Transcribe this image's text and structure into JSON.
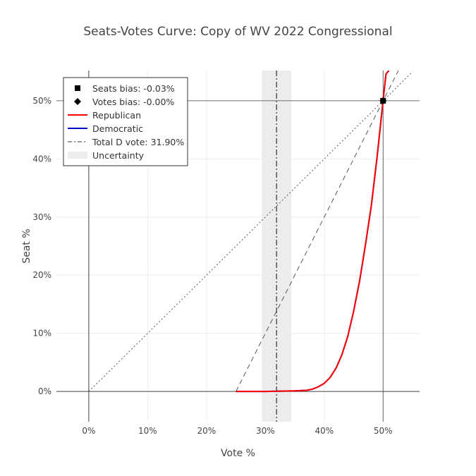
{
  "chart_data": {
    "type": "line",
    "title": "Seats-Votes Curve: Copy of WV 2022 Congressional",
    "xlabel": "Vote %",
    "ylabel": "Seat %",
    "xlim": [
      -0.055,
      0.562
    ],
    "ylim": [
      -0.052,
      0.552
    ],
    "x_ticks": [
      0,
      0.1,
      0.2,
      0.3,
      0.4,
      0.5
    ],
    "x_tick_labels": [
      "0%",
      "10%",
      "20%",
      "30%",
      "40%",
      "50%"
    ],
    "y_ticks": [
      0,
      0.1,
      0.2,
      0.3,
      0.4,
      0.5
    ],
    "y_tick_labels": [
      "0%",
      "10%",
      "20%",
      "30%",
      "40%",
      "50%"
    ],
    "grid": true,
    "legend_position": "top-left",
    "legend": {
      "seats_bias": "Seats bias: -0.03%",
      "votes_bias": "Votes bias: -0.00%",
      "republican": "Republican",
      "democratic": "Democratic",
      "total_d_vote": "Total D vote: 31.90%",
      "uncertainty": "Uncertainty"
    },
    "colors": {
      "republican": "#ff0000",
      "democratic": "#0000cc",
      "reference": "#555555",
      "uncertainty_band": "#ececec",
      "grid": "#eeeeee"
    },
    "total_d_vote": 0.319,
    "uncertainty_range": [
      0.294,
      0.344
    ],
    "seats_bias_point": {
      "x": 0.5,
      "y": 0.5
    },
    "votes_bias_point": {
      "x": 0.5,
      "y": 0.5
    },
    "reference_lines": [
      {
        "name": "proportionality",
        "style": "dotted",
        "x": [
          0,
          0.55
        ],
        "y": [
          0,
          0.55
        ]
      },
      {
        "name": "responsiveness",
        "style": "dashed",
        "x": [
          0.25,
          0.526
        ],
        "y": [
          0,
          0.552
        ]
      }
    ],
    "series": [
      {
        "name": "Republican",
        "x": [
          0.25,
          0.3,
          0.35,
          0.37,
          0.38,
          0.39,
          0.4,
          0.41,
          0.42,
          0.43,
          0.44,
          0.45,
          0.46,
          0.47,
          0.48,
          0.49,
          0.5,
          0.505,
          0.51
        ],
        "y": [
          0.0,
          0.0,
          0.001,
          0.002,
          0.004,
          0.008,
          0.014,
          0.024,
          0.04,
          0.063,
          0.095,
          0.138,
          0.19,
          0.252,
          0.32,
          0.405,
          0.5,
          0.546,
          0.552
        ]
      },
      {
        "name": "Democratic",
        "x": [
          0.25,
          0.3,
          0.35,
          0.37,
          0.38,
          0.39,
          0.4,
          0.41,
          0.42,
          0.43,
          0.44,
          0.45,
          0.46,
          0.47,
          0.48,
          0.49,
          0.5,
          0.505,
          0.51
        ],
        "y": [
          0.0,
          0.0,
          0.001,
          0.002,
          0.004,
          0.008,
          0.014,
          0.024,
          0.04,
          0.063,
          0.095,
          0.138,
          0.19,
          0.252,
          0.32,
          0.405,
          0.5,
          0.546,
          0.552
        ]
      }
    ]
  }
}
